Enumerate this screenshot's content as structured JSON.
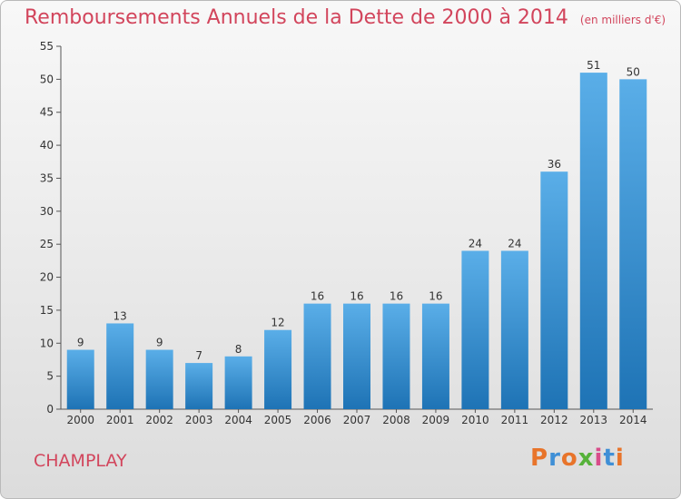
{
  "header": {
    "title": "Remboursements Annuels de la Dette de 2000 à 2014",
    "unit": "(en milliers d'€)"
  },
  "footer": {
    "commune": "CHAMPLAY",
    "logo_letters": [
      "P",
      "r",
      "o",
      "x",
      "i",
      "t",
      "i"
    ]
  },
  "colors": {
    "title": "#d2455c",
    "bar_top": "#5aaee8",
    "bar_bottom": "#1e73b5",
    "logo": [
      "#e8742a",
      "#3f8fd6",
      "#e8742a",
      "#56b23a",
      "#d84c8a",
      "#3f8fd6",
      "#e8742a"
    ]
  },
  "chart_data": {
    "type": "bar",
    "categories": [
      "2000",
      "2001",
      "2002",
      "2003",
      "2004",
      "2005",
      "2006",
      "2007",
      "2008",
      "2009",
      "2010",
      "2011",
      "2012",
      "2013",
      "2014"
    ],
    "values": [
      9,
      13,
      9,
      7,
      8,
      12,
      16,
      16,
      16,
      16,
      24,
      24,
      36,
      51,
      50
    ],
    "ylim": [
      0,
      55
    ],
    "yticks": [
      0,
      5,
      10,
      15,
      20,
      25,
      30,
      35,
      40,
      45,
      50,
      55
    ],
    "grid": false,
    "xlabel": "",
    "ylabel": ""
  }
}
